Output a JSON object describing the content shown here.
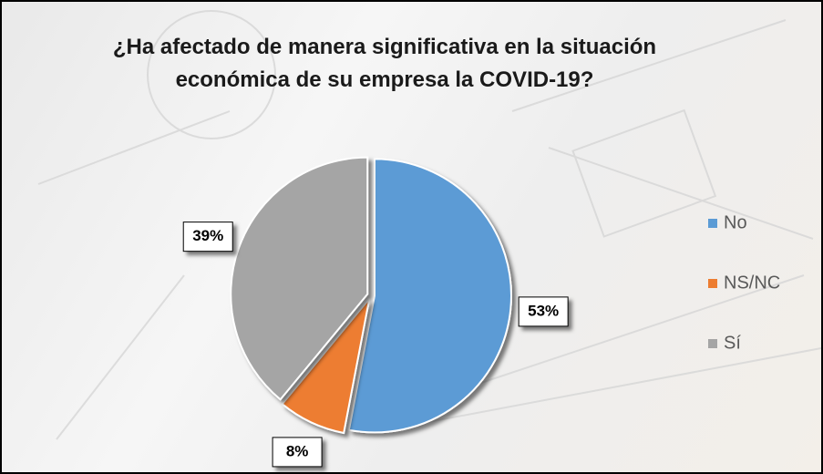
{
  "chart_data": {
    "type": "pie",
    "title": "¿Ha afectado de manera significativa en la situación económica de su empresa la COVID-19?",
    "categories": [
      "No",
      "NS/NC",
      "Sí"
    ],
    "values": [
      53,
      8,
      39
    ],
    "value_labels": [
      "53%",
      "8%",
      "39%"
    ],
    "colors": [
      "#5b9bd5",
      "#ed7d31",
      "#a5a5a5"
    ],
    "legend": "right"
  }
}
